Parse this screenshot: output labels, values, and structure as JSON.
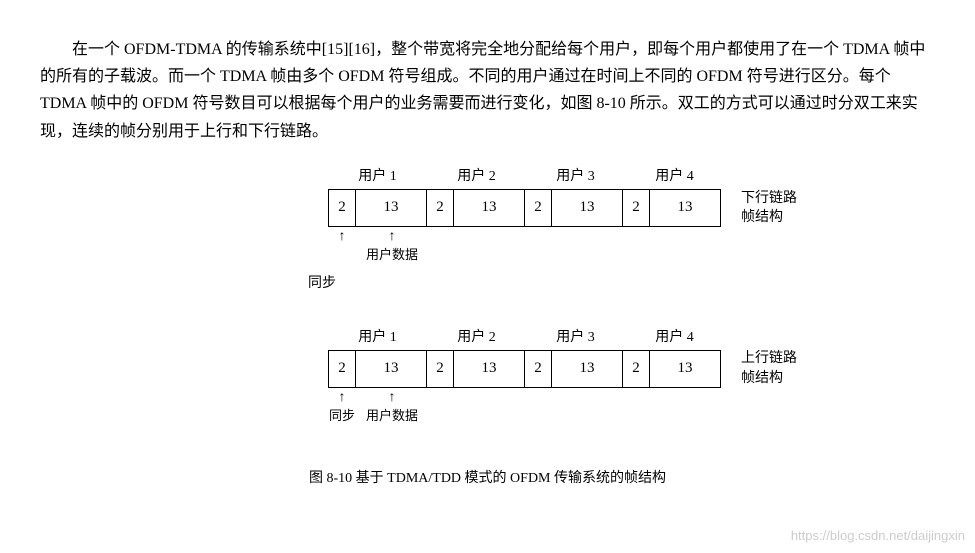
{
  "paragraph": "在一个 OFDM-TDMA 的传输系统中[15][16]，整个带宽将完全地分配给每个用户，即每个用户都使用了在一个 TDMA 帧中的所有的子载波。而一个 TDMA 帧由多个 OFDM 符号组成。不同的用户通过在时间上不同的 OFDM 符号进行区分。每个 TDMA 帧中的 OFDM 符号数目可以根据每个用户的业务需要而进行变化，如图 8-10 所示。双工的方式可以通过时分双工来实现，连续的帧分别用于上行和下行链路。",
  "diagram": {
    "cell_small_width": 28,
    "cell_large_width": 72,
    "users": [
      "用户 1",
      "用户 2",
      "用户 3",
      "用户 4"
    ],
    "cell_pair": [
      "2",
      "13"
    ],
    "frames": [
      {
        "side_label_line1": "下行链路",
        "side_label_line2": "帧结构",
        "arrow_label": "用户数据",
        "sync_label": "同步"
      },
      {
        "side_label_line1": "上行链路",
        "side_label_line2": "帧结构",
        "arrow_label": "用户数据",
        "sync_label": "同步"
      }
    ],
    "caption": "图 8-10  基于 TDMA/TDD 模式的 OFDM 传输系统的帧结构"
  },
  "watermark": "https://blog.csdn.net/daijingxin"
}
